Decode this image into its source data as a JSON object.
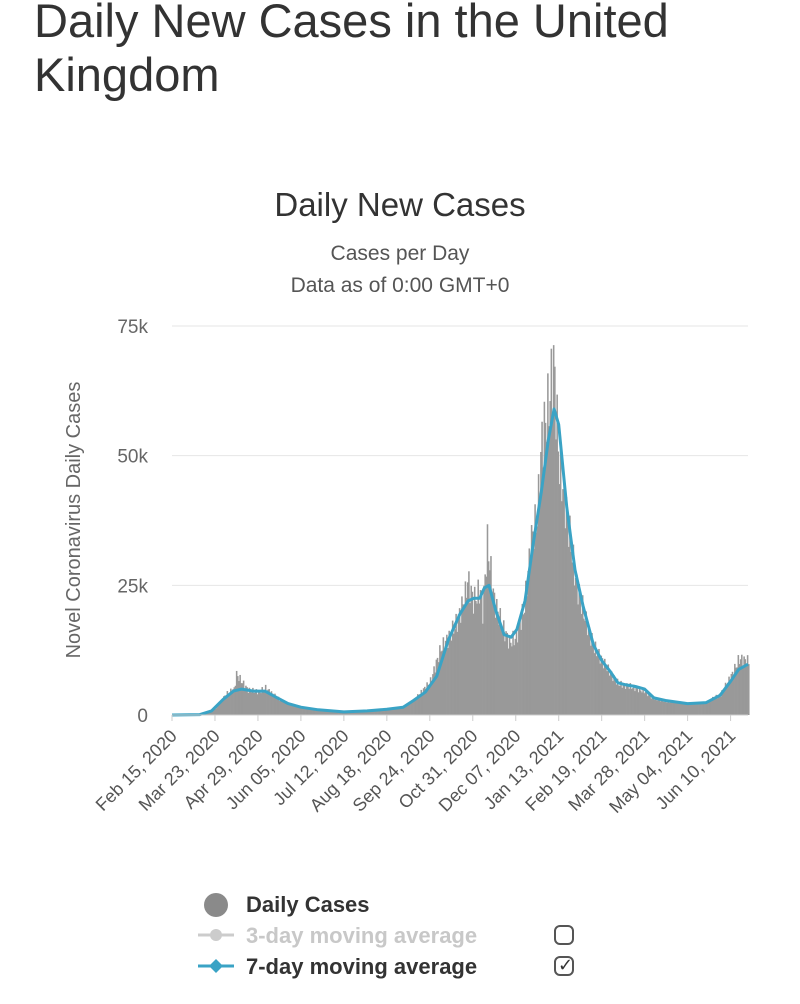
{
  "page": {
    "title": "Daily New Cases in the United Kingdom"
  },
  "chart_data": {
    "type": "bar",
    "title": "Daily New Cases",
    "subtitle_lines": [
      "Cases per Day",
      "Data as of 0:00 GMT+0"
    ],
    "ylabel": "Novel Coronavirus Daily Cases",
    "xlabel": "",
    "ylim": [
      0,
      75000
    ],
    "y_ticks": [
      {
        "value": 0,
        "label": "0"
      },
      {
        "value": 25000,
        "label": "25k"
      },
      {
        "value": 50000,
        "label": "50k"
      },
      {
        "value": 75000,
        "label": "75k"
      }
    ],
    "x_ticks": [
      {
        "date": "2020-02-15",
        "label": "Feb 15, 2020"
      },
      {
        "date": "2020-03-23",
        "label": "Mar 23, 2020"
      },
      {
        "date": "2020-04-29",
        "label": "Apr 29, 2020"
      },
      {
        "date": "2020-06-05",
        "label": "Jun 05, 2020"
      },
      {
        "date": "2020-07-12",
        "label": "Jul 12, 2020"
      },
      {
        "date": "2020-08-18",
        "label": "Aug 18, 2020"
      },
      {
        "date": "2020-09-24",
        "label": "Sep 24, 2020"
      },
      {
        "date": "2020-10-31",
        "label": "Oct 31, 2020"
      },
      {
        "date": "2020-12-07",
        "label": "Dec 07, 2020"
      },
      {
        "date": "2021-01-13",
        "label": "Jan 13, 2021"
      },
      {
        "date": "2021-02-19",
        "label": "Feb 19, 2021"
      },
      {
        "date": "2021-03-28",
        "label": "Mar 28, 2021"
      },
      {
        "date": "2021-05-04",
        "label": "May 04, 2021"
      },
      {
        "date": "2021-06-10",
        "label": "Jun 10, 2021"
      }
    ],
    "x_range": [
      "2020-02-15",
      "2021-06-25"
    ],
    "grid": true,
    "legend_position": "bottom",
    "series": [
      {
        "name": "Daily Cases",
        "kind": "bar",
        "color": "#999999",
        "enabled": true,
        "points": [
          [
            "2020-02-15",
            0
          ],
          [
            "2020-03-01",
            20
          ],
          [
            "2020-03-15",
            400
          ],
          [
            "2020-03-23",
            1200
          ],
          [
            "2020-04-01",
            4000
          ],
          [
            "2020-04-08",
            5000
          ],
          [
            "2020-04-10",
            7800
          ],
          [
            "2020-04-20",
            4800
          ],
          [
            "2020-04-29",
            4500
          ],
          [
            "2020-05-05",
            5200
          ],
          [
            "2020-05-15",
            3300
          ],
          [
            "2020-05-25",
            2000
          ],
          [
            "2020-06-05",
            1500
          ],
          [
            "2020-06-20",
            1100
          ],
          [
            "2020-07-01",
            800
          ],
          [
            "2020-07-12",
            600
          ],
          [
            "2020-07-25",
            750
          ],
          [
            "2020-08-05",
            900
          ],
          [
            "2020-08-18",
            1100
          ],
          [
            "2020-09-01",
            1400
          ],
          [
            "2020-09-10",
            2800
          ],
          [
            "2020-09-24",
            6500
          ],
          [
            "2020-10-03",
            12800
          ],
          [
            "2020-10-10",
            15000
          ],
          [
            "2020-10-17",
            18000
          ],
          [
            "2020-10-24",
            23000
          ],
          [
            "2020-10-26",
            26000
          ],
          [
            "2020-10-31",
            22000
          ],
          [
            "2020-11-06",
            24000
          ],
          [
            "2020-11-08",
            20000
          ],
          [
            "2020-11-12",
            33000
          ],
          [
            "2020-11-18",
            22000
          ],
          [
            "2020-11-25",
            17000
          ],
          [
            "2020-12-01",
            14000
          ],
          [
            "2020-12-07",
            15000
          ],
          [
            "2020-12-14",
            21000
          ],
          [
            "2020-12-20",
            34000
          ],
          [
            "2020-12-25",
            38000
          ],
          [
            "2020-12-29",
            53000
          ],
          [
            "2021-01-04",
            60000
          ],
          [
            "2021-01-08",
            68000
          ],
          [
            "2021-01-13",
            48000
          ],
          [
            "2021-01-20",
            38000
          ],
          [
            "2021-01-27",
            26000
          ],
          [
            "2021-02-05",
            18000
          ],
          [
            "2021-02-12",
            13000
          ],
          [
            "2021-02-19",
            10500
          ],
          [
            "2021-02-26",
            8000
          ],
          [
            "2021-03-05",
            6000
          ],
          [
            "2021-03-15",
            5500
          ],
          [
            "2021-03-28",
            4500
          ],
          [
            "2021-04-05",
            3000
          ],
          [
            "2021-04-15",
            2500
          ],
          [
            "2021-05-04",
            2200
          ],
          [
            "2021-05-20",
            2500
          ],
          [
            "2021-06-01",
            4000
          ],
          [
            "2021-06-10",
            7500
          ],
          [
            "2021-06-17",
            10800
          ],
          [
            "2021-06-25",
            10300
          ]
        ]
      },
      {
        "name": "3-day moving average",
        "kind": "line",
        "color": "#cccccc",
        "enabled": false
      },
      {
        "name": "7-day moving average",
        "kind": "line",
        "color": "#3aa3c5",
        "enabled": true,
        "points": [
          [
            "2020-02-15",
            0
          ],
          [
            "2020-03-10",
            80
          ],
          [
            "2020-03-20",
            800
          ],
          [
            "2020-03-30",
            3000
          ],
          [
            "2020-04-08",
            4600
          ],
          [
            "2020-04-15",
            5000
          ],
          [
            "2020-04-25",
            4600
          ],
          [
            "2020-05-05",
            4600
          ],
          [
            "2020-05-15",
            3400
          ],
          [
            "2020-05-25",
            2200
          ],
          [
            "2020-06-05",
            1500
          ],
          [
            "2020-06-20",
            1000
          ],
          [
            "2020-07-12",
            600
          ],
          [
            "2020-08-01",
            800
          ],
          [
            "2020-08-18",
            1100
          ],
          [
            "2020-09-01",
            1500
          ],
          [
            "2020-09-10",
            2800
          ],
          [
            "2020-09-20",
            4400
          ],
          [
            "2020-09-30",
            7500
          ],
          [
            "2020-10-10",
            14500
          ],
          [
            "2020-10-20",
            19500
          ],
          [
            "2020-10-27",
            22000
          ],
          [
            "2020-11-01",
            22500
          ],
          [
            "2020-11-06",
            22500
          ],
          [
            "2020-11-10",
            24500
          ],
          [
            "2020-11-14",
            25000
          ],
          [
            "2020-11-20",
            20000
          ],
          [
            "2020-11-27",
            15500
          ],
          [
            "2020-12-03",
            15000
          ],
          [
            "2020-12-08",
            16500
          ],
          [
            "2020-12-15",
            22000
          ],
          [
            "2020-12-22",
            33000
          ],
          [
            "2020-12-29",
            43000
          ],
          [
            "2021-01-04",
            53000
          ],
          [
            "2021-01-09",
            59000
          ],
          [
            "2021-01-13",
            56000
          ],
          [
            "2021-01-20",
            40000
          ],
          [
            "2021-01-27",
            28000
          ],
          [
            "2021-02-03",
            21000
          ],
          [
            "2021-02-12",
            13500
          ],
          [
            "2021-02-19",
            10500
          ],
          [
            "2021-02-26",
            8500
          ],
          [
            "2021-03-05",
            6200
          ],
          [
            "2021-03-12",
            5800
          ],
          [
            "2021-03-20",
            5500
          ],
          [
            "2021-03-28",
            5000
          ],
          [
            "2021-04-05",
            3300
          ],
          [
            "2021-04-15",
            2800
          ],
          [
            "2021-05-04",
            2200
          ],
          [
            "2021-05-20",
            2400
          ],
          [
            "2021-06-01",
            3800
          ],
          [
            "2021-06-10",
            6500
          ],
          [
            "2021-06-17",
            8800
          ],
          [
            "2021-06-25",
            9800
          ]
        ]
      }
    ]
  },
  "legend": [
    {
      "label": "Daily Cases",
      "marker": "dot",
      "color": "#8a8a8a",
      "enabled": true,
      "checkbox": "none"
    },
    {
      "label": "3-day moving average",
      "marker": "line",
      "color": "#cccccc",
      "enabled": false,
      "checkbox": "unchecked"
    },
    {
      "label": "7-day moving average",
      "marker": "line",
      "color": "#3aa3c5",
      "enabled": true,
      "checkbox": "checked"
    }
  ]
}
